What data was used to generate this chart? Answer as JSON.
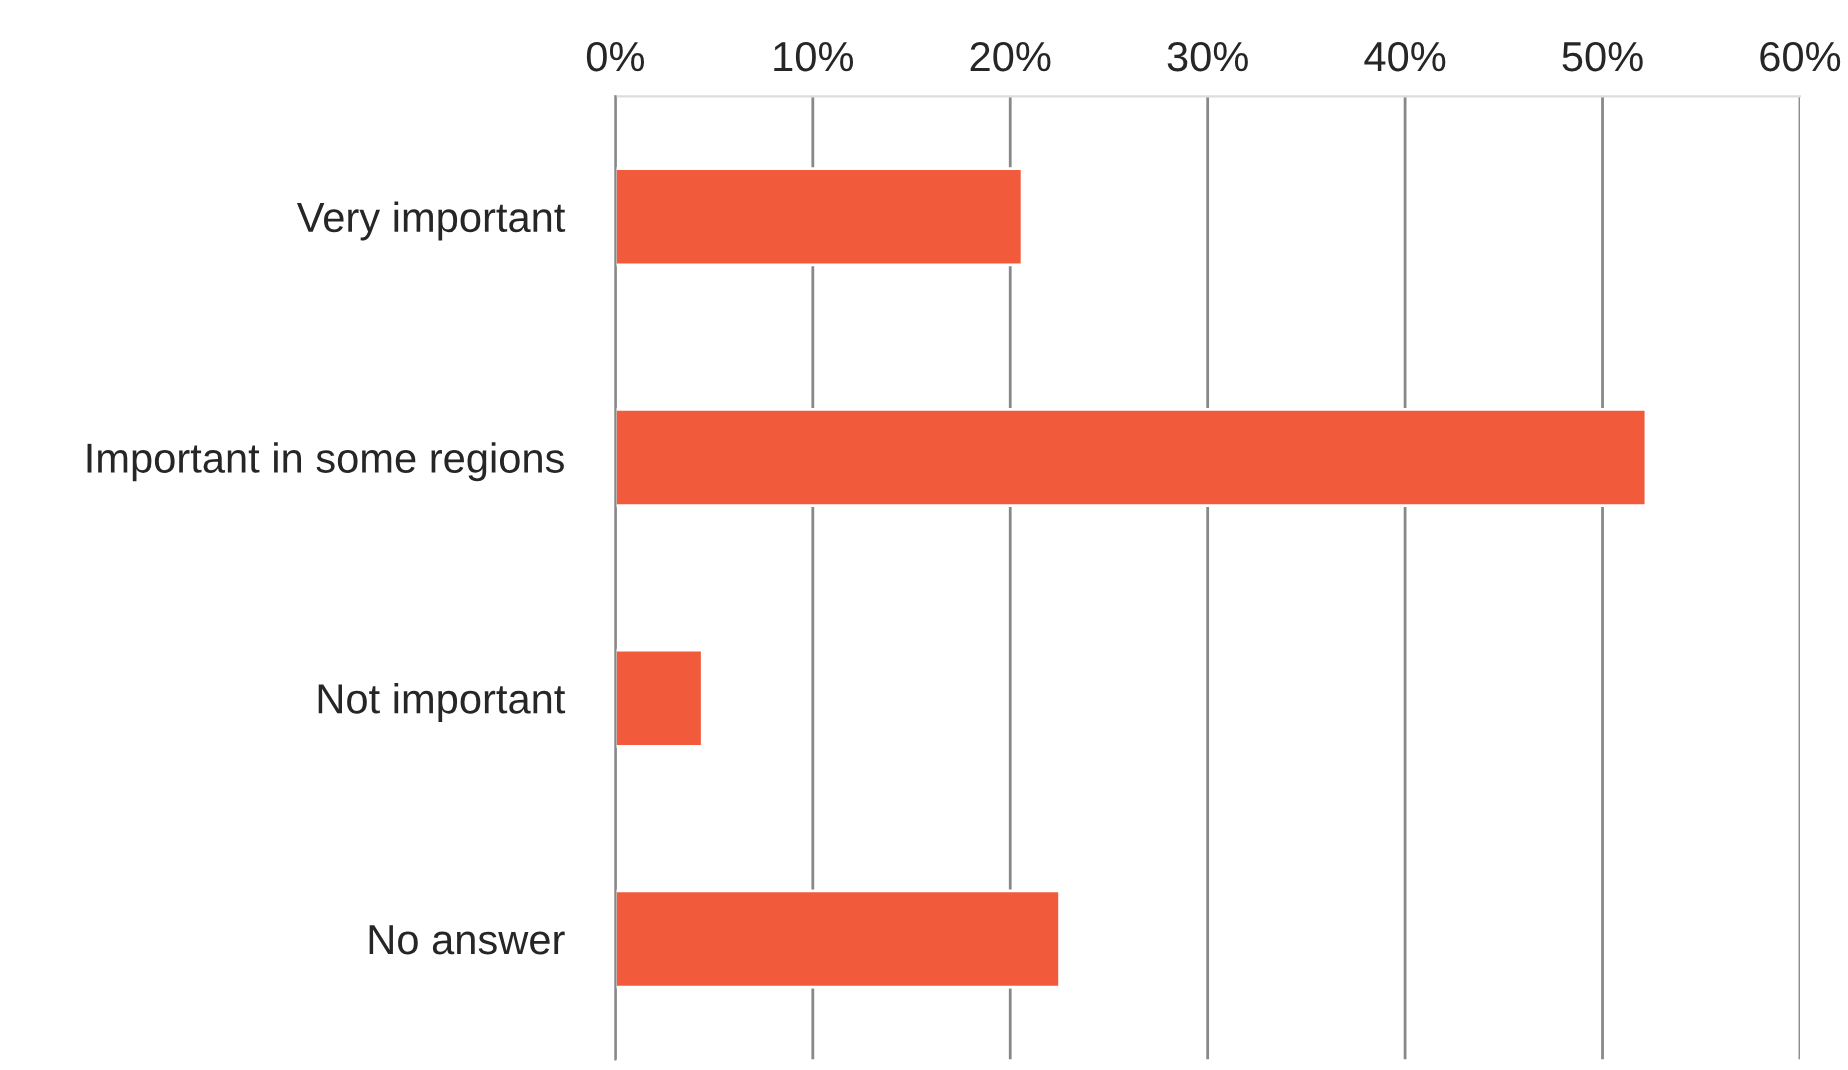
{
  "chart_data": {
    "type": "bar",
    "orientation": "horizontal",
    "categories": [
      "Very important",
      "Important in some regions",
      "Not important",
      "No answer"
    ],
    "values": [
      20.6,
      52.2,
      4.4,
      22.5
    ],
    "color": "#f15a3a",
    "xlim": [
      0,
      60
    ],
    "xticks": [
      {
        "value": 0,
        "label": "0%"
      },
      {
        "value": 10,
        "label": "10%"
      },
      {
        "value": 20,
        "label": "20%"
      },
      {
        "value": 30,
        "label": "30%"
      },
      {
        "value": 40,
        "label": "40%"
      },
      {
        "value": 50,
        "label": "50%"
      },
      {
        "value": 60,
        "label": "60%"
      }
    ],
    "grid": "x",
    "legend": false
  }
}
